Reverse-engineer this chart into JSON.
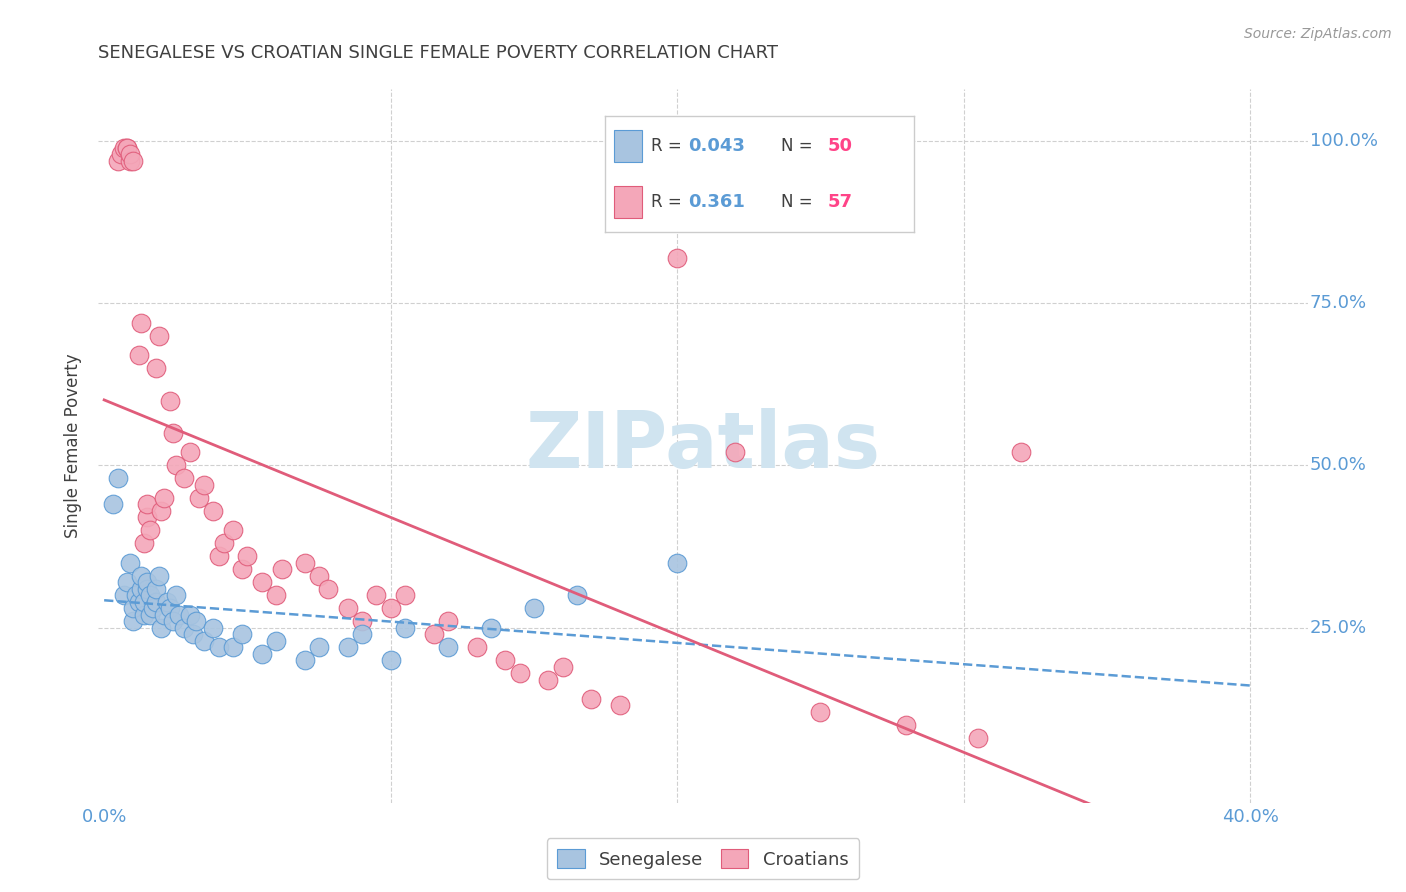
{
  "title": "SENEGALESE VS CROATIAN SINGLE FEMALE POVERTY CORRELATION CHART",
  "source": "Source: ZipAtlas.com",
  "ylabel_label": "Single Female Poverty",
  "xlim": [
    -0.002,
    0.42
  ],
  "ylim": [
    -0.02,
    1.08
  ],
  "xtick_vals": [
    0.0,
    0.1,
    0.2,
    0.3,
    0.4
  ],
  "xtick_labels": [
    "0.0%",
    "",
    "",
    "",
    "40.0%"
  ],
  "ytick_vals": [
    0.25,
    0.5,
    0.75,
    1.0
  ],
  "ytick_labels": [
    "25.0%",
    "50.0%",
    "75.0%",
    "100.0%"
  ],
  "watermark": "ZIPatlas",
  "blue_r": 0.043,
  "blue_n": 50,
  "pink_r": 0.361,
  "pink_n": 57,
  "blue_scatter_x": [
    0.003,
    0.005,
    0.007,
    0.008,
    0.009,
    0.01,
    0.01,
    0.011,
    0.012,
    0.013,
    0.013,
    0.014,
    0.014,
    0.015,
    0.015,
    0.016,
    0.016,
    0.017,
    0.018,
    0.018,
    0.019,
    0.02,
    0.021,
    0.022,
    0.023,
    0.024,
    0.025,
    0.026,
    0.028,
    0.03,
    0.031,
    0.032,
    0.035,
    0.038,
    0.04,
    0.045,
    0.048,
    0.055,
    0.06,
    0.07,
    0.075,
    0.085,
    0.09,
    0.1,
    0.105,
    0.12,
    0.135,
    0.15,
    0.165,
    0.2
  ],
  "blue_scatter_y": [
    0.44,
    0.48,
    0.3,
    0.32,
    0.35,
    0.26,
    0.28,
    0.3,
    0.29,
    0.31,
    0.33,
    0.27,
    0.29,
    0.31,
    0.32,
    0.27,
    0.3,
    0.28,
    0.29,
    0.31,
    0.33,
    0.25,
    0.27,
    0.29,
    0.28,
    0.26,
    0.3,
    0.27,
    0.25,
    0.27,
    0.24,
    0.26,
    0.23,
    0.25,
    0.22,
    0.22,
    0.24,
    0.21,
    0.23,
    0.2,
    0.22,
    0.22,
    0.24,
    0.2,
    0.25,
    0.22,
    0.25,
    0.28,
    0.3,
    0.35
  ],
  "pink_scatter_x": [
    0.005,
    0.006,
    0.007,
    0.008,
    0.008,
    0.009,
    0.009,
    0.01,
    0.012,
    0.013,
    0.014,
    0.015,
    0.015,
    0.016,
    0.018,
    0.019,
    0.02,
    0.021,
    0.023,
    0.024,
    0.025,
    0.028,
    0.03,
    0.033,
    0.035,
    0.038,
    0.04,
    0.042,
    0.045,
    0.048,
    0.05,
    0.055,
    0.06,
    0.062,
    0.07,
    0.075,
    0.078,
    0.085,
    0.09,
    0.095,
    0.1,
    0.105,
    0.115,
    0.12,
    0.13,
    0.14,
    0.145,
    0.155,
    0.16,
    0.17,
    0.18,
    0.2,
    0.22,
    0.25,
    0.28,
    0.305,
    0.32
  ],
  "pink_scatter_y": [
    0.97,
    0.98,
    0.99,
    0.99,
    0.99,
    0.97,
    0.98,
    0.97,
    0.67,
    0.72,
    0.38,
    0.42,
    0.44,
    0.4,
    0.65,
    0.7,
    0.43,
    0.45,
    0.6,
    0.55,
    0.5,
    0.48,
    0.52,
    0.45,
    0.47,
    0.43,
    0.36,
    0.38,
    0.4,
    0.34,
    0.36,
    0.32,
    0.3,
    0.34,
    0.35,
    0.33,
    0.31,
    0.28,
    0.26,
    0.3,
    0.28,
    0.3,
    0.24,
    0.26,
    0.22,
    0.2,
    0.18,
    0.17,
    0.19,
    0.14,
    0.13,
    0.82,
    0.52,
    0.12,
    0.1,
    0.08,
    0.52
  ],
  "blue_line_color": "#5b9bd5",
  "pink_line_color": "#e05c7a",
  "blue_marker_color": "#a8c4e0",
  "pink_marker_color": "#f4a7b9",
  "background_color": "#ffffff",
  "grid_color": "#d0d0d0",
  "title_color": "#404040",
  "axis_color": "#5b9bd5",
  "watermark_color": "#d0e4f0",
  "legend_r_color": "#5b9bd5",
  "legend_n_color": "#ff4488",
  "legend_text_color": "#404040"
}
